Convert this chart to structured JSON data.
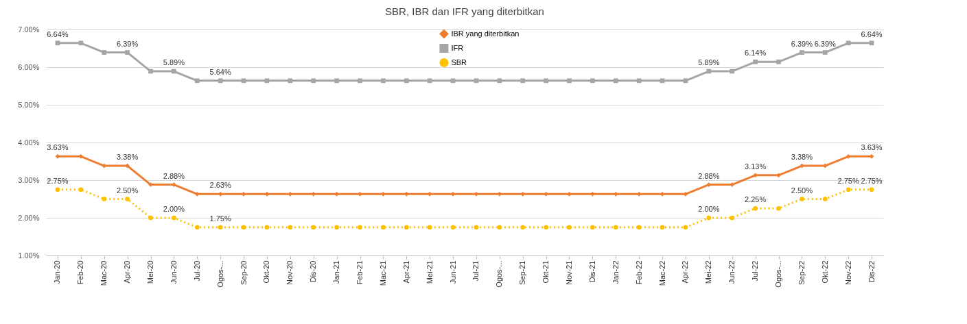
{
  "chart_data": {
    "type": "line",
    "title": "SBR, IBR dan IFR yang diterbitkan",
    "categories": [
      "Jan-20",
      "Feb-20",
      "Mac-20",
      "Apr-20",
      "Mei-20",
      "Jun-20",
      "Jul-20",
      "Ogos-...",
      "Sep-20",
      "Okt-20",
      "Nov-20",
      "Dis-20",
      "Jan-21",
      "Feb-21",
      "Mac-21",
      "Apr-21",
      "Mei-21",
      "Jun-21",
      "Jul-21",
      "Ogos-...",
      "Sep-21",
      "Okt-21",
      "Nov-21",
      "Dis-21",
      "Jan-22",
      "Feb-22",
      "Mac-22",
      "Apr-22",
      "Mei-22",
      "Jun-22",
      "Jul-22",
      "Ogos-...",
      "Sep-22",
      "Okt-22",
      "Nov-22",
      "Dis-22"
    ],
    "series": [
      {
        "name": "IBR yang diterbitkan",
        "color": "#ed7d31",
        "marker": "diamond",
        "line_style": "solid",
        "values": [
          3.63,
          3.63,
          3.38,
          3.38,
          2.88,
          2.88,
          2.63,
          2.63,
          2.63,
          2.63,
          2.63,
          2.63,
          2.63,
          2.63,
          2.63,
          2.63,
          2.63,
          2.63,
          2.63,
          2.63,
          2.63,
          2.63,
          2.63,
          2.63,
          2.63,
          2.63,
          2.63,
          2.63,
          2.88,
          2.88,
          3.13,
          3.13,
          3.38,
          3.38,
          3.63,
          3.63
        ],
        "value_labels": [
          "3.63%",
          null,
          null,
          "3.38%",
          null,
          "2.88%",
          null,
          "2.63%",
          null,
          null,
          null,
          null,
          null,
          null,
          null,
          null,
          null,
          null,
          null,
          null,
          null,
          null,
          null,
          null,
          null,
          null,
          null,
          null,
          "2.88%",
          null,
          "3.13%",
          null,
          "3.38%",
          null,
          null,
          "3.63%"
        ]
      },
      {
        "name": "IFR",
        "color": "#a5a5a5",
        "marker": "square",
        "line_style": "solid",
        "values": [
          6.64,
          6.64,
          6.39,
          6.39,
          5.89,
          5.89,
          5.64,
          5.64,
          5.64,
          5.64,
          5.64,
          5.64,
          5.64,
          5.64,
          5.64,
          5.64,
          5.64,
          5.64,
          5.64,
          5.64,
          5.64,
          5.64,
          5.64,
          5.64,
          5.64,
          5.64,
          5.64,
          5.64,
          5.89,
          5.89,
          6.14,
          6.14,
          6.39,
          6.39,
          6.64,
          6.64
        ],
        "value_labels": [
          "6.64%",
          null,
          null,
          "6.39%",
          null,
          "5.89%",
          null,
          "5.64%",
          null,
          null,
          null,
          null,
          null,
          null,
          null,
          null,
          null,
          null,
          null,
          null,
          null,
          null,
          null,
          null,
          null,
          null,
          null,
          null,
          "5.89%",
          null,
          "6.14%",
          null,
          "6.39%",
          "6.39%",
          null,
          "6.64%"
        ]
      },
      {
        "name": "SBR",
        "color": "#ffc000",
        "marker": "circle",
        "line_style": "dotted",
        "values": [
          2.75,
          2.75,
          2.5,
          2.5,
          2.0,
          2.0,
          1.75,
          1.75,
          1.75,
          1.75,
          1.75,
          1.75,
          1.75,
          1.75,
          1.75,
          1.75,
          1.75,
          1.75,
          1.75,
          1.75,
          1.75,
          1.75,
          1.75,
          1.75,
          1.75,
          1.75,
          1.75,
          1.75,
          2.0,
          2.0,
          2.25,
          2.25,
          2.5,
          2.5,
          2.75,
          2.75
        ],
        "value_labels": [
          "2.75%",
          null,
          null,
          "2.50%",
          null,
          "2.00%",
          null,
          "1.75%",
          null,
          null,
          null,
          null,
          null,
          null,
          null,
          null,
          null,
          null,
          null,
          null,
          null,
          null,
          null,
          null,
          null,
          null,
          null,
          null,
          "2.00%",
          null,
          "2.25%",
          null,
          "2.50%",
          null,
          "2.75%",
          "2.75%"
        ]
      }
    ],
    "ylim": [
      1,
      7
    ],
    "yticks": [
      {
        "value": 1,
        "label": "1.00%"
      },
      {
        "value": 2,
        "label": "2.00%"
      },
      {
        "value": 3,
        "label": "3.00%"
      },
      {
        "value": 4,
        "label": "4.00%"
      },
      {
        "value": 5,
        "label": "5.00%"
      },
      {
        "value": 6,
        "label": "6.00%"
      },
      {
        "value": 7,
        "label": "7.00%"
      }
    ],
    "grid": "y",
    "legend": "top"
  }
}
